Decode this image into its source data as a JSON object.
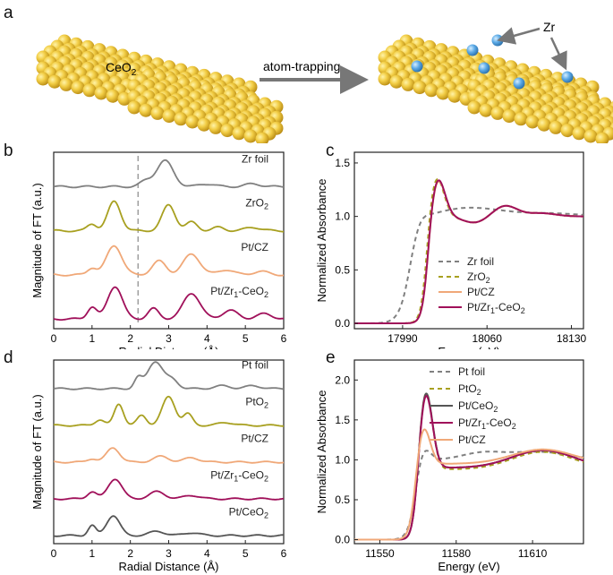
{
  "panels": {
    "a": "a",
    "b": "b",
    "c": "c",
    "d": "d",
    "e": "e"
  },
  "illustration": {
    "left_label": "CeO",
    "left_sub": "2",
    "arrow_label": "atom-trapping",
    "zr_label": "Zr"
  },
  "colors": {
    "gold": "#e8c23a",
    "zr_blue": "#5aa9e6",
    "gray": "#808080",
    "olive": "#a8a020",
    "peach": "#f0a878",
    "crimson": "#a0105a",
    "darkgray": "#555555"
  },
  "chart_data": [
    {
      "id": "b",
      "type": "line",
      "xlabel": "Radial Distance (Å)",
      "ylabel": "Magnitude of FT (a.u.)",
      "xlim": [
        0,
        6
      ],
      "xticks": [
        "0",
        "1",
        "2",
        "3",
        "4",
        "5",
        "6"
      ],
      "dashed_line_x": 2.2,
      "series": [
        {
          "name": "Zr foil",
          "color": "#808080",
          "offset": 3,
          "peaks": [
            [
              2.9,
              0.75,
              0.22
            ],
            [
              2.4,
              0.15,
              0.15
            ],
            [
              4.0,
              0.08,
              0.2
            ],
            [
              5.2,
              0.08,
              0.2
            ]
          ]
        },
        {
          "name": "ZrO2",
          "label_main": "ZrO",
          "label_sub": "2",
          "color": "#a8a020",
          "offset": 2,
          "peaks": [
            [
              1.58,
              0.85,
              0.17
            ],
            [
              3.0,
              0.75,
              0.17
            ],
            [
              1.0,
              0.2,
              0.12
            ],
            [
              3.6,
              0.25,
              0.15
            ],
            [
              4.3,
              0.1,
              0.15
            ],
            [
              5.2,
              0.1,
              0.2
            ]
          ]
        },
        {
          "name": "Pt/CZ",
          "color": "#f0a878",
          "offset": 1,
          "peaks": [
            [
              1.58,
              0.85,
              0.2
            ],
            [
              2.75,
              0.4,
              0.18
            ],
            [
              3.6,
              0.6,
              0.22
            ],
            [
              1.0,
              0.2,
              0.12
            ],
            [
              4.5,
              0.15,
              0.2
            ],
            [
              5.4,
              0.1,
              0.2
            ]
          ]
        },
        {
          "name": "Pt/Zr1-CeO2",
          "label_main": "Pt/Zr",
          "label_sub1": "1",
          "label_mid": "-CeO",
          "label_sub2": "2",
          "color": "#a0105a",
          "offset": 0,
          "peaks": [
            [
              1.6,
              0.95,
              0.19
            ],
            [
              3.6,
              0.75,
              0.22
            ],
            [
              1.0,
              0.35,
              0.12
            ],
            [
              2.6,
              0.3,
              0.14
            ],
            [
              4.6,
              0.25,
              0.2
            ],
            [
              5.5,
              0.15,
              0.2
            ]
          ]
        }
      ]
    },
    {
      "id": "c",
      "type": "line",
      "xlabel": "Energy (eV)",
      "ylabel": "Normalized Absorbance",
      "xlim": [
        17950,
        18140
      ],
      "ylim": [
        -0.05,
        1.6
      ],
      "xticks": [
        17990,
        18060,
        18130
      ],
      "yticks": [
        0.0,
        0.5,
        1.0,
        1.5
      ],
      "legend": "bottom-right",
      "series": [
        {
          "name": "Zr foil",
          "color": "#808080",
          "dash": "5,4",
          "edge": 17996,
          "width": 9,
          "whiteline": 0.05,
          "osc": [
            [
              18035,
              0.05,
              18
            ],
            [
              18060,
              0.05,
              20
            ],
            [
              18110,
              0.03,
              25
            ]
          ]
        },
        {
          "name": "ZrO2",
          "label_main": "ZrO",
          "label_sub": "2",
          "color": "#a8a020",
          "dash": "5,4",
          "edge": 18010,
          "width": 5,
          "whiteline": 0.38,
          "osc": [
            [
              18050,
              -0.06,
              10
            ],
            [
              18075,
              0.1,
              10
            ],
            [
              18105,
              0.03,
              12
            ]
          ]
        },
        {
          "name": "Pt/CZ",
          "color": "#f0a878",
          "dash": "",
          "edge": 18011,
          "width": 5,
          "whiteline": 0.36,
          "osc": [
            [
              18050,
              -0.06,
              10
            ],
            [
              18075,
              0.1,
              10
            ],
            [
              18105,
              0.03,
              12
            ]
          ]
        },
        {
          "name": "Pt/Zr1-CeO2",
          "label_main": "Pt/Zr",
          "label_sub1": "1",
          "label_mid": "-CeO",
          "label_sub2": "2",
          "color": "#a0105a",
          "dash": "",
          "edge": 18011,
          "width": 5,
          "whiteline": 0.37,
          "osc": [
            [
              18050,
              -0.06,
              10
            ],
            [
              18075,
              0.1,
              10
            ],
            [
              18105,
              0.03,
              12
            ]
          ]
        }
      ]
    },
    {
      "id": "d",
      "type": "line",
      "xlabel": "Radial Distance (Å)",
      "ylabel": "Magnitude of FT (a.u.)",
      "xlim": [
        0,
        6
      ],
      "xticks": [
        "0",
        "1",
        "2",
        "3",
        "4",
        "5",
        "6"
      ],
      "series": [
        {
          "name": "Pt foil",
          "color": "#808080",
          "offset": 4,
          "peaks": [
            [
              2.65,
              0.95,
              0.2
            ],
            [
              2.2,
              0.35,
              0.1
            ],
            [
              3.1,
              0.3,
              0.15
            ],
            [
              4.4,
              0.1,
              0.2
            ],
            [
              5.2,
              0.1,
              0.2
            ]
          ]
        },
        {
          "name": "PtO2",
          "label_main": "PtO",
          "label_sub": "2",
          "color": "#a8a020",
          "offset": 3,
          "peaks": [
            [
              1.7,
              0.75,
              0.12
            ],
            [
              3.0,
              1.0,
              0.17
            ],
            [
              2.3,
              0.35,
              0.12
            ],
            [
              1.2,
              0.2,
              0.12
            ],
            [
              3.5,
              0.4,
              0.12
            ],
            [
              4.5,
              0.1,
              0.2
            ]
          ]
        },
        {
          "name": "Pt/CZ",
          "color": "#f0a878",
          "offset": 2,
          "peaks": [
            [
              1.55,
              0.5,
              0.17
            ],
            [
              2.8,
              0.2,
              0.2
            ],
            [
              3.6,
              0.15,
              0.2
            ],
            [
              1.0,
              0.12,
              0.12
            ]
          ]
        },
        {
          "name": "Pt/Zr1-CeO2",
          "label_main": "Pt/Zr",
          "label_sub1": "1",
          "label_mid": "-CeO",
          "label_sub2": "2",
          "color": "#a0105a",
          "offset": 1,
          "peaks": [
            [
              1.6,
              0.7,
              0.18
            ],
            [
              2.7,
              0.25,
              0.2
            ],
            [
              1.0,
              0.25,
              0.12
            ],
            [
              3.6,
              0.12,
              0.2
            ]
          ]
        },
        {
          "name": "Pt/CeO2",
          "label_main": "Pt/CeO",
          "label_sub": "2",
          "color": "#555555",
          "offset": 0,
          "peaks": [
            [
              1.55,
              0.7,
              0.17
            ],
            [
              1.0,
              0.35,
              0.1
            ],
            [
              2.7,
              0.15,
              0.2
            ],
            [
              3.6,
              0.1,
              0.2
            ]
          ]
        }
      ]
    },
    {
      "id": "e",
      "type": "line",
      "xlabel": "Energy (eV)",
      "ylabel": "Normalized Absorbance",
      "xlim": [
        11540,
        11630
      ],
      "ylim": [
        -0.05,
        2.25
      ],
      "xticks": [
        11550,
        11580,
        11610
      ],
      "yticks": [
        0.0,
        0.5,
        1.0,
        1.5,
        2.0
      ],
      "legend": "top-right",
      "series": [
        {
          "name": "Pt foil",
          "color": "#808080",
          "dash": "5,4",
          "edge": 11564,
          "width": 3.2,
          "peak": 0.2,
          "base": 1.0,
          "hump": [
            [
              11590,
              0.08,
              8
            ],
            [
              11612,
              0.1,
              12
            ]
          ]
        },
        {
          "name": "PtO2",
          "label_main": "PtO",
          "label_sub": "2",
          "color": "#a8a020",
          "dash": "5,4",
          "edge": 11565,
          "width": 2.2,
          "peak": 1.0,
          "base": 0.88,
          "hump": [
            [
              11614,
              0.22,
              12
            ]
          ]
        },
        {
          "name": "Pt/CeO2",
          "label_main": "Pt/CeO",
          "label_sub": "2",
          "color": "#555555",
          "dash": "",
          "edge": 11565,
          "width": 2.2,
          "peak": 0.98,
          "base": 0.9,
          "hump": [
            [
              11614,
              0.22,
              12
            ]
          ]
        },
        {
          "name": "Pt/Zr1-CeO2",
          "label_main": "Pt/Zr",
          "label_sub1": "1",
          "label_mid": "-CeO",
          "label_sub2": "2",
          "color": "#a0105a",
          "dash": "",
          "edge": 11565,
          "width": 2.2,
          "peak": 0.95,
          "base": 0.9,
          "hump": [
            [
              11614,
              0.22,
              12
            ]
          ]
        },
        {
          "name": "Pt/CZ",
          "color": "#f0a878",
          "dash": "",
          "edge": 11564,
          "width": 2.6,
          "peak": 0.5,
          "base": 0.95,
          "hump": [
            [
              11614,
              0.18,
              12
            ]
          ]
        }
      ]
    }
  ]
}
